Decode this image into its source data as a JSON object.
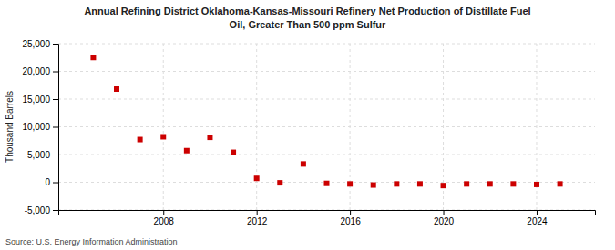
{
  "chart_data": {
    "type": "scatter",
    "title": "Annual Refining District Oklahoma-Kansas-Missouri Refinery Net Production of Distillate Fuel",
    "subtitle": "Oil, Greater Than 500 ppm Sulfur",
    "ylabel": "Thousand Barrels",
    "source": "Source: U.S. Energy Information Administration",
    "x": [
      2005,
      2006,
      2007,
      2008,
      2009,
      2010,
      2011,
      2012,
      2013,
      2014,
      2015,
      2016,
      2017,
      2018,
      2019,
      2020,
      2021,
      2022,
      2023,
      2024,
      2025
    ],
    "values": [
      22500,
      16800,
      7700,
      8200,
      5700,
      8100,
      5400,
      700,
      -100,
      3300,
      -200,
      -300,
      -500,
      -300,
      -300,
      -600,
      -300,
      -300,
      -300,
      -400,
      -300
    ],
    "color": "#cc0000",
    "marker": "square",
    "xlim": [
      2003.5,
      2026.5
    ],
    "xticks": [
      2008,
      2012,
      2016,
      2020,
      2024
    ],
    "ylim": [
      -5000,
      25000
    ],
    "yticks": [
      {
        "value": -5000,
        "label": "-5,000"
      },
      0,
      {
        "value": 5000,
        "label": "5,000"
      },
      {
        "value": 10000,
        "label": "10,000"
      },
      {
        "value": 15000,
        "label": "15,000"
      },
      {
        "value": 20000,
        "label": "20,000"
      },
      {
        "value": 25000,
        "label": "25,000"
      }
    ],
    "grid": true
  }
}
